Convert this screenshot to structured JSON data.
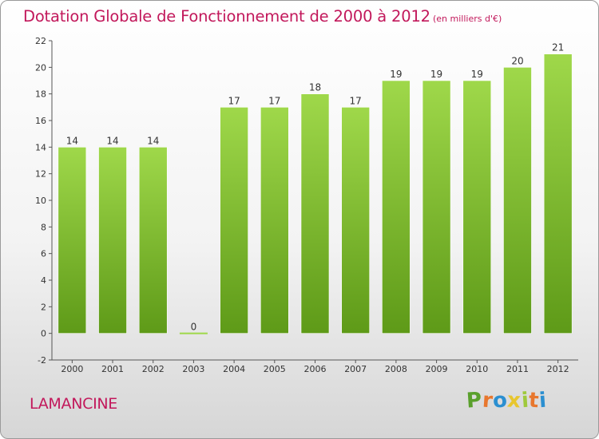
{
  "title": "Dotation Globale de Fonctionnement de 2000 à 2012",
  "unit_note": "(en milliers d'€)",
  "commune": "LAMANCINE",
  "logo": {
    "letters": [
      "P",
      "r",
      "o",
      "x",
      "i",
      "t",
      "i"
    ],
    "colors": [
      "#5aa02c",
      "#e8772e",
      "#2b8fd0",
      "#e8c62e",
      "#9fc93c",
      "#e8772e",
      "#2b8fd0"
    ]
  },
  "colors": {
    "bar_top": "#9fd84a",
    "bar_bottom": "#5e9a18",
    "title": "#c2185b"
  },
  "chart_data": {
    "type": "bar",
    "title": "Dotation Globale de Fonctionnement de 2000 à 2012",
    "categories": [
      "2000",
      "2001",
      "2002",
      "2003",
      "2004",
      "2005",
      "2006",
      "2007",
      "2008",
      "2009",
      "2010",
      "2011",
      "2012"
    ],
    "values": [
      14,
      14,
      14,
      0,
      17,
      17,
      18,
      17,
      19,
      19,
      19,
      20,
      21
    ],
    "data_labels": [
      "14",
      "14",
      "14",
      "0",
      "17",
      "17",
      "18",
      "17",
      "19",
      "19",
      "19",
      "20",
      "21"
    ],
    "ylim": [
      -2,
      22
    ],
    "yticks": [
      "-2",
      "0",
      "2",
      "4",
      "6",
      "8",
      "10",
      "12",
      "14",
      "16",
      "18",
      "20",
      "22"
    ],
    "ytick_values": [
      -2,
      0,
      2,
      4,
      6,
      8,
      10,
      12,
      14,
      16,
      18,
      20,
      22
    ],
    "grid": false,
    "legend": "none"
  }
}
